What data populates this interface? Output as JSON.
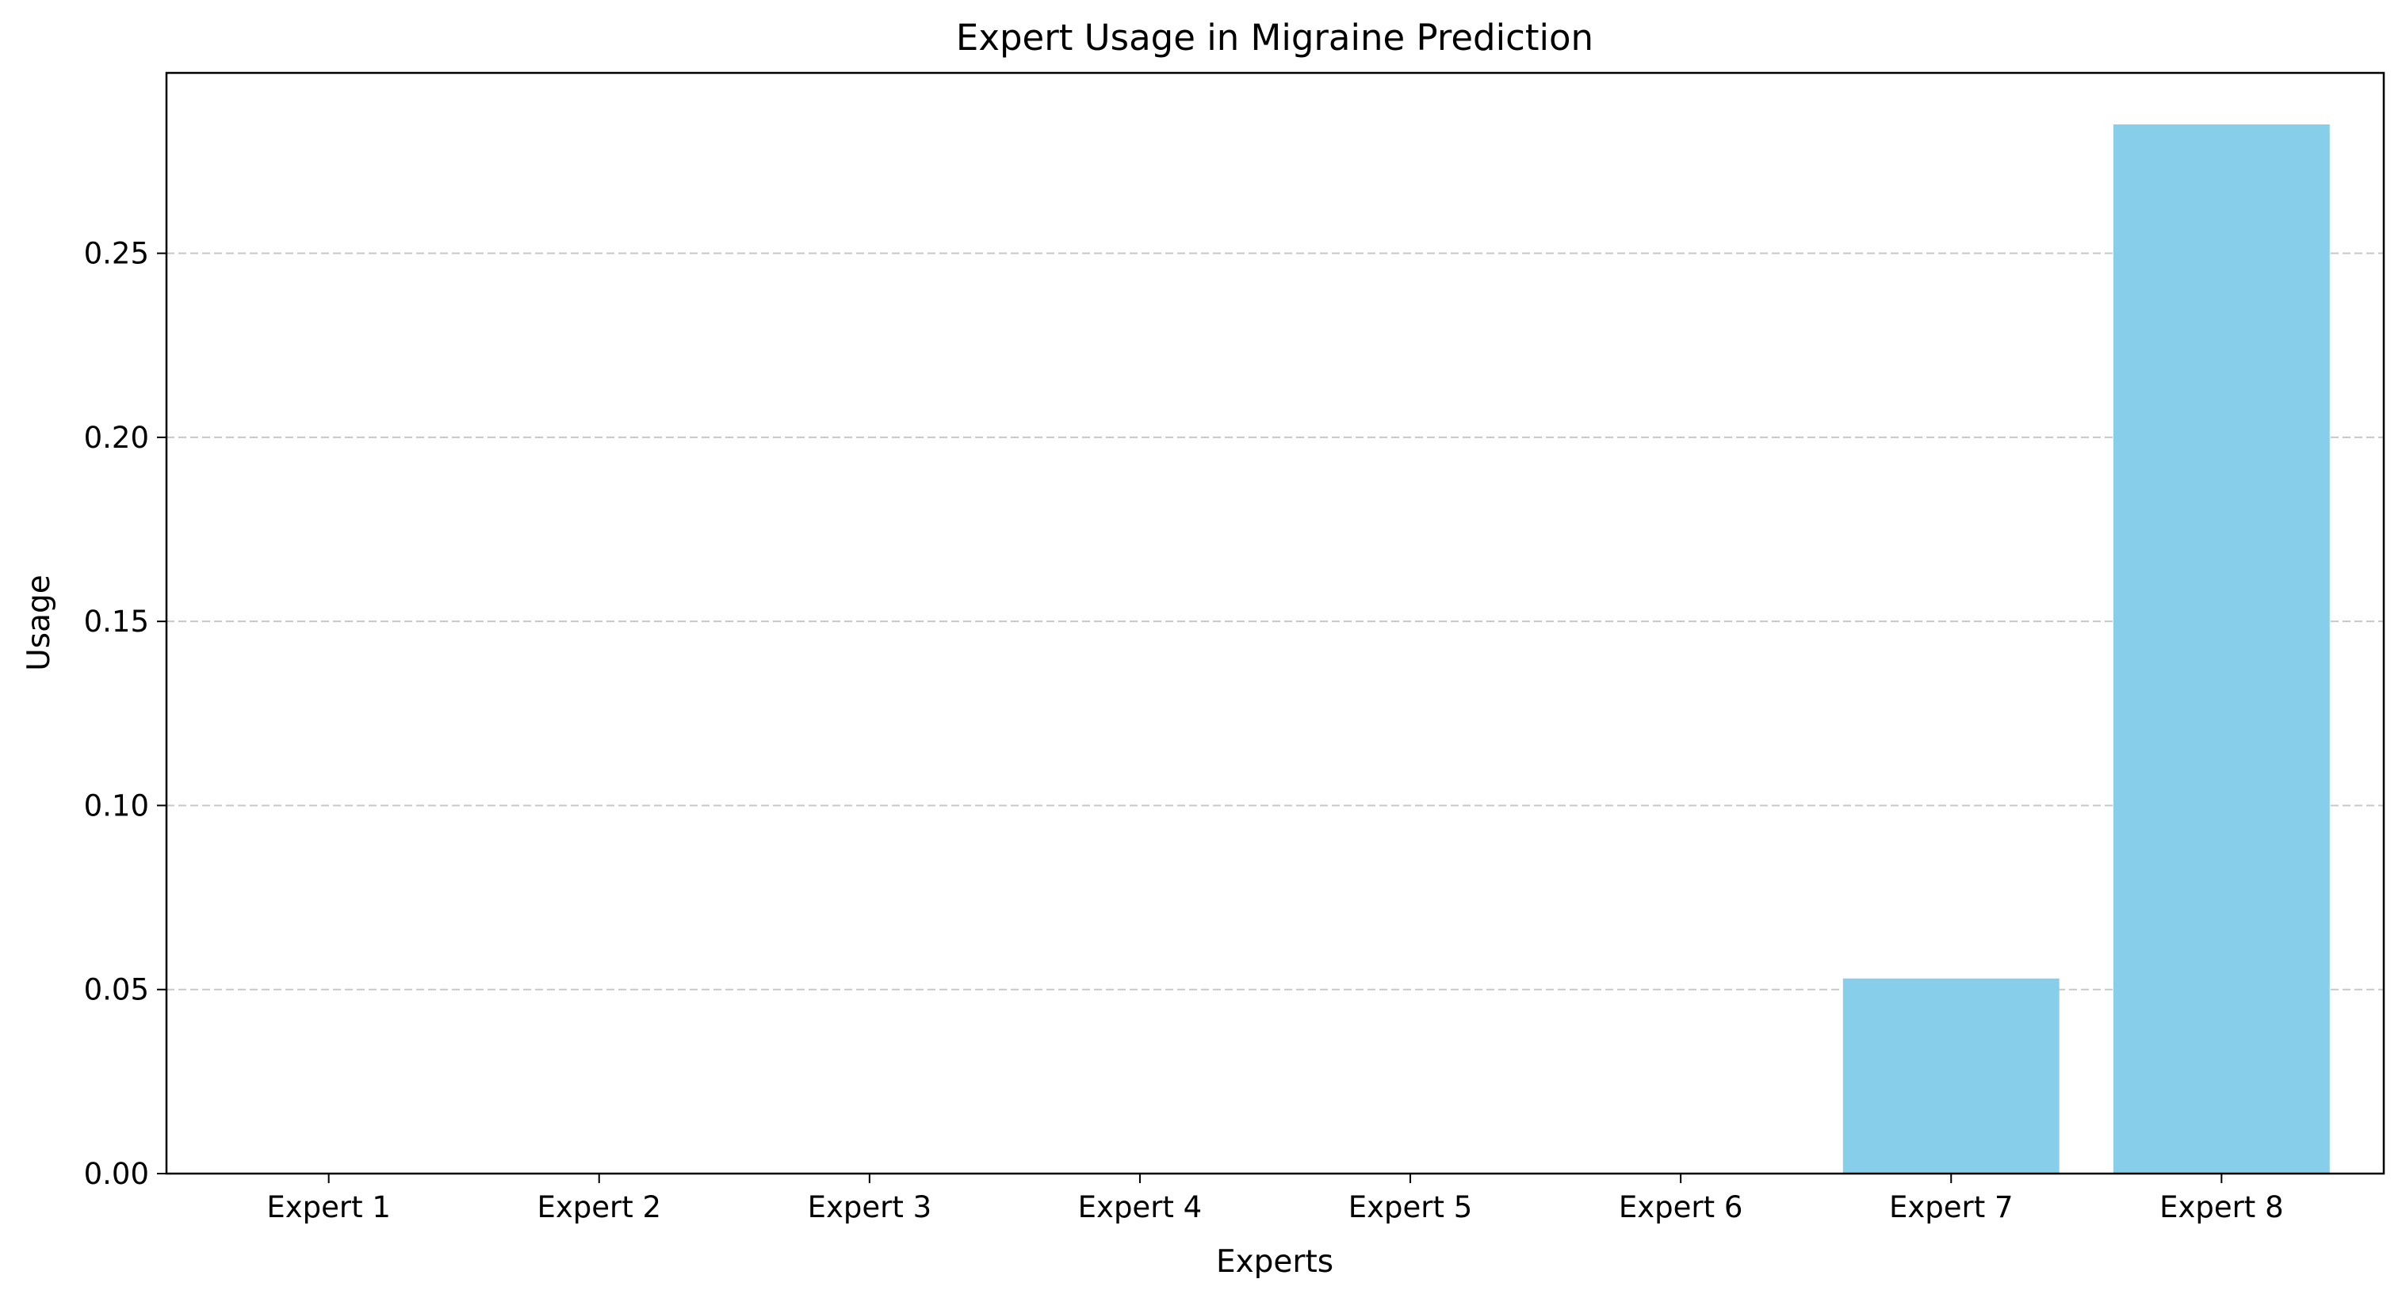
{
  "chart_data": {
    "type": "bar",
    "title": "Expert Usage in Migraine Prediction",
    "xlabel": "Experts",
    "ylabel": "Usage",
    "categories": [
      "Expert 1",
      "Expert 2",
      "Expert 3",
      "Expert 4",
      "Expert 5",
      "Expert 6",
      "Expert 7",
      "Expert 8"
    ],
    "values": [
      0,
      0,
      0,
      0,
      0,
      0,
      0.053,
      0.285
    ],
    "ylim": [
      0,
      0.299
    ],
    "yticks": [
      0.0,
      0.05,
      0.1,
      0.15,
      0.2,
      0.25
    ],
    "ytick_labels": [
      "0.00",
      "0.05",
      "0.10",
      "0.15",
      "0.20",
      "0.25"
    ],
    "grid": {
      "axis": "y",
      "style": "dashed",
      "color": "#c8c8c8"
    },
    "bar_color": "#87ceeb",
    "legend": null
  }
}
